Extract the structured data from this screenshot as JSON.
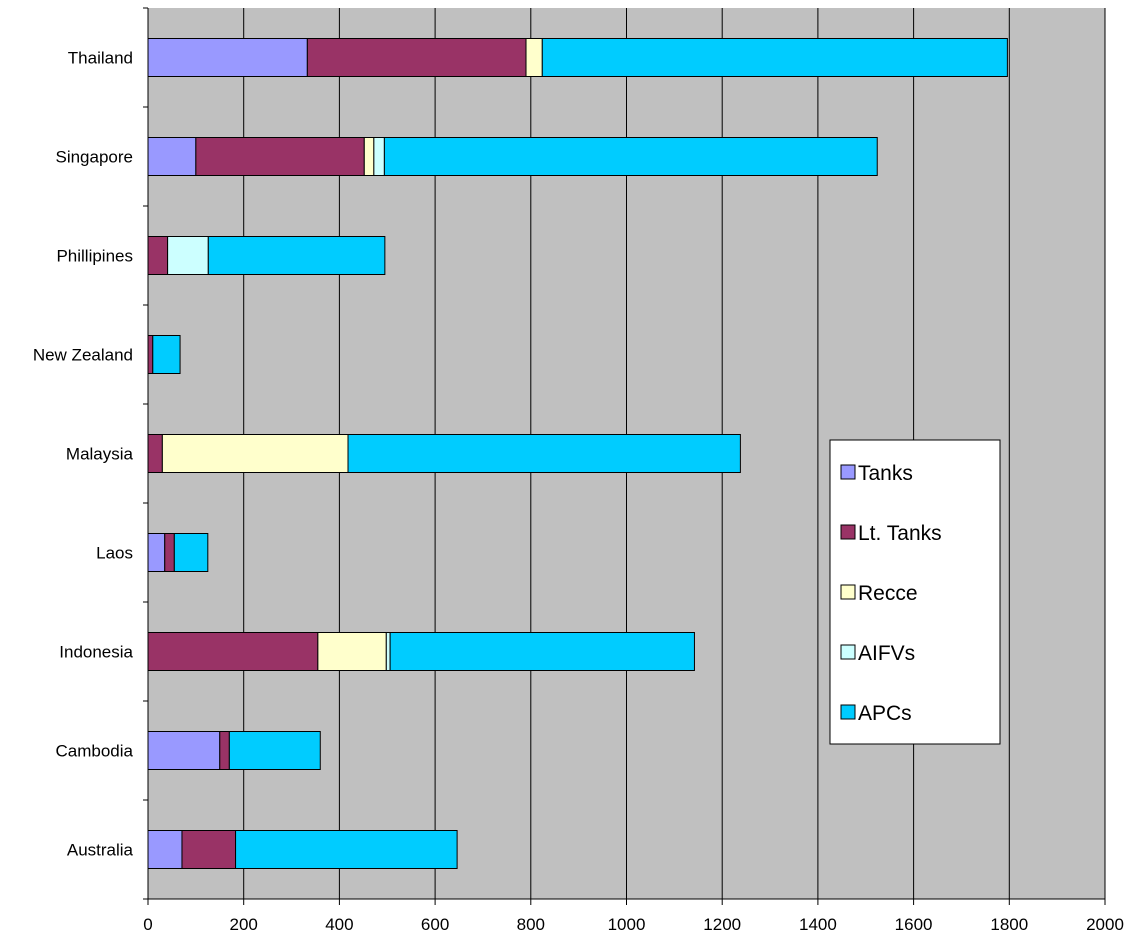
{
  "chart_data": {
    "type": "bar",
    "orientation": "horizontal",
    "stacked": true,
    "title": "",
    "xlabel": "",
    "ylabel": "",
    "xlim": [
      0,
      2000
    ],
    "x_ticks": [
      0,
      200,
      400,
      600,
      800,
      1000,
      1200,
      1400,
      1600,
      1800,
      2000
    ],
    "grid": true,
    "legend_position": "right",
    "plot_background": "#C0C0C0",
    "categories": [
      "Australia",
      "Cambodia",
      "Indonesia",
      "Laos",
      "Malaysia",
      "New Zealand",
      "Phillipines",
      "Singapore",
      "Thailand"
    ],
    "series": [
      {
        "name": "Tanks",
        "color": "#9999FF",
        "values": [
          71,
          150,
          0,
          35,
          0,
          0,
          0,
          100,
          333
        ]
      },
      {
        "name": "Lt. Tanks",
        "color": "#993366",
        "values": [
          112,
          20,
          355,
          20,
          30,
          10,
          41,
          352,
          457
        ]
      },
      {
        "name": "Recce",
        "color": "#FFFFCC",
        "values": [
          0,
          0,
          143,
          0,
          388,
          0,
          0,
          20,
          34
        ]
      },
      {
        "name": "AIFVs",
        "color": "#CCFFFF",
        "values": [
          0,
          0,
          8,
          0,
          0,
          0,
          85,
          22,
          0
        ]
      },
      {
        "name": "APCs",
        "color": "#00CCFF",
        "values": [
          463,
          190,
          636,
          70,
          820,
          57,
          369,
          1030,
          972
        ]
      }
    ]
  }
}
